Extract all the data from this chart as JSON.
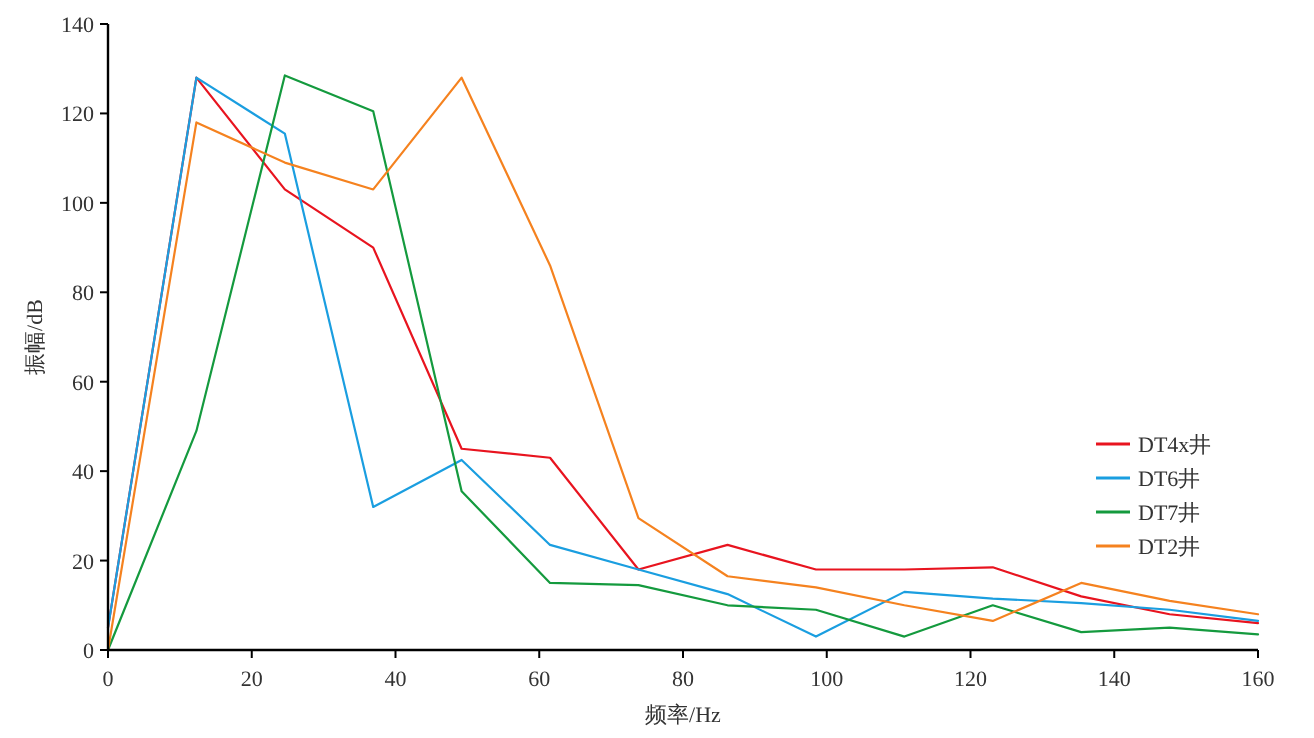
{
  "chart_data": {
    "type": "line",
    "xlabel": "频率/Hz",
    "ylabel": "振幅/dB",
    "x": [
      0,
      12.3,
      24.6,
      36.9,
      49.2,
      61.5,
      73.8,
      86.2,
      98.5,
      110.8,
      123.1,
      135.4,
      147.7,
      160
    ],
    "xlim": [
      0,
      160
    ],
    "xticks": [
      0,
      20,
      40,
      60,
      80,
      100,
      120,
      140,
      160
    ],
    "ylim": [
      0,
      140
    ],
    "yticks": [
      0,
      20,
      40,
      60,
      80,
      100,
      120,
      140
    ],
    "grid": false,
    "legend": "right",
    "marker": "none",
    "line_style": "solid",
    "series": [
      {
        "name": "DT4x井",
        "color": "#e8141f",
        "values": [
          5,
          128,
          103,
          90,
          45,
          43,
          18,
          23.5,
          18,
          18,
          18.5,
          12,
          8,
          6
        ]
      },
      {
        "name": "DT6井",
        "color": "#1a9ee0",
        "values": [
          5,
          128,
          115.5,
          32,
          42.5,
          23.5,
          18,
          12.5,
          3,
          13,
          11.5,
          10.5,
          9,
          6.5
        ]
      },
      {
        "name": "DT7井",
        "color": "#149a3e",
        "values": [
          0,
          49,
          128.5,
          120.5,
          35.5,
          15,
          14.5,
          10,
          9,
          3,
          10,
          4,
          5,
          3.5
        ]
      },
      {
        "name": "DT2井",
        "color": "#f5821f",
        "values": [
          0,
          118,
          109,
          103,
          128,
          86,
          29.5,
          16.5,
          14,
          10,
          6.5,
          15,
          11,
          8
        ]
      }
    ]
  }
}
